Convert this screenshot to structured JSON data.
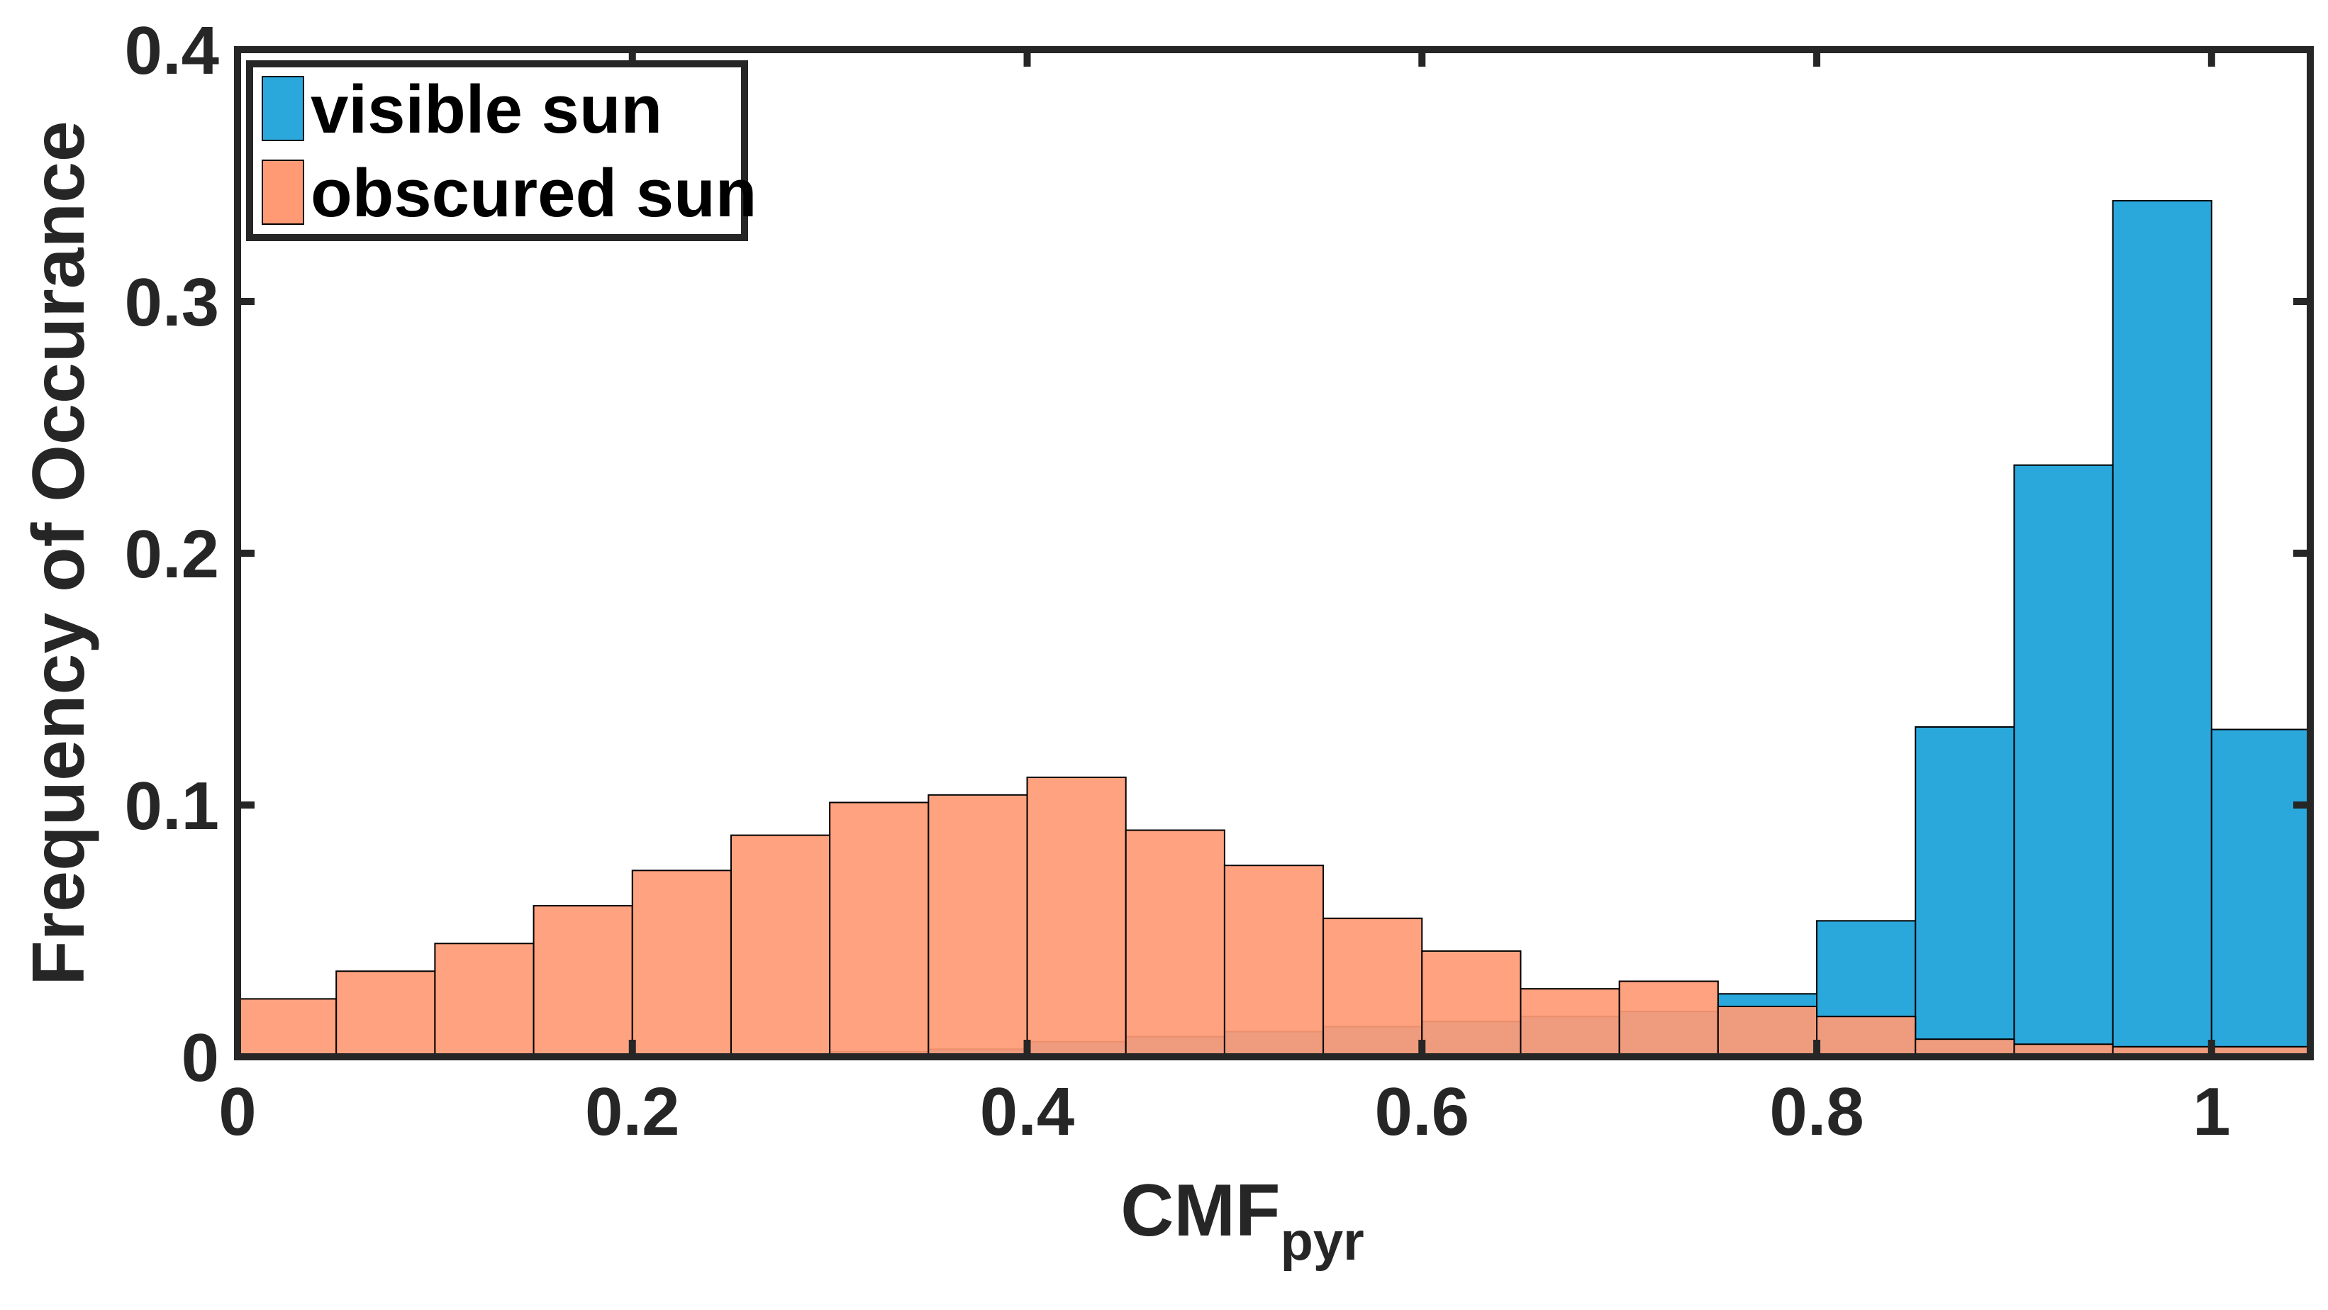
{
  "chart_data": {
    "type": "bar",
    "bin_edges": [
      0,
      0.05,
      0.1,
      0.15,
      0.2,
      0.25,
      0.3,
      0.35,
      0.4,
      0.45,
      0.5,
      0.55,
      0.6,
      0.65,
      0.7,
      0.75,
      0.8,
      0.85,
      0.9,
      0.95,
      1.0,
      1.05
    ],
    "series": [
      {
        "name": "visible sun",
        "color": "#2aa8dc",
        "values": [
          0.001,
          0.001,
          0.001,
          0.001,
          0.001,
          0.001,
          0.002,
          0.003,
          0.006,
          0.008,
          0.01,
          0.012,
          0.014,
          0.016,
          0.018,
          0.025,
          0.054,
          0.131,
          0.235,
          0.34,
          0.13
        ]
      },
      {
        "name": "obscured sun",
        "color": "#ff9a75",
        "values": [
          0.023,
          0.034,
          0.045,
          0.06,
          0.074,
          0.088,
          0.101,
          0.104,
          0.111,
          0.09,
          0.076,
          0.055,
          0.042,
          0.027,
          0.03,
          0.02,
          0.016,
          0.007,
          0.005,
          0.004,
          0.004
        ]
      }
    ],
    "xlabel": "CMF",
    "xlabel_subscript": "pyr",
    "ylabel": "Frequency of Occurance",
    "xlim": [
      0,
      1.05
    ],
    "ylim": [
      0,
      0.4
    ],
    "xticks": [
      0,
      0.2,
      0.4,
      0.6,
      0.8,
      1
    ],
    "xtick_labels": [
      "0",
      "0.2",
      "0.4",
      "0.6",
      "0.8",
      "1"
    ],
    "yticks": [
      0,
      0.1,
      0.2,
      0.3,
      0.4
    ],
    "ytick_labels": [
      "0",
      "0.1",
      "0.2",
      "0.3",
      "0.4"
    ],
    "legend": {
      "position": "top-left",
      "entries": [
        "visible sun",
        "obscured sun"
      ]
    },
    "grid": false
  }
}
